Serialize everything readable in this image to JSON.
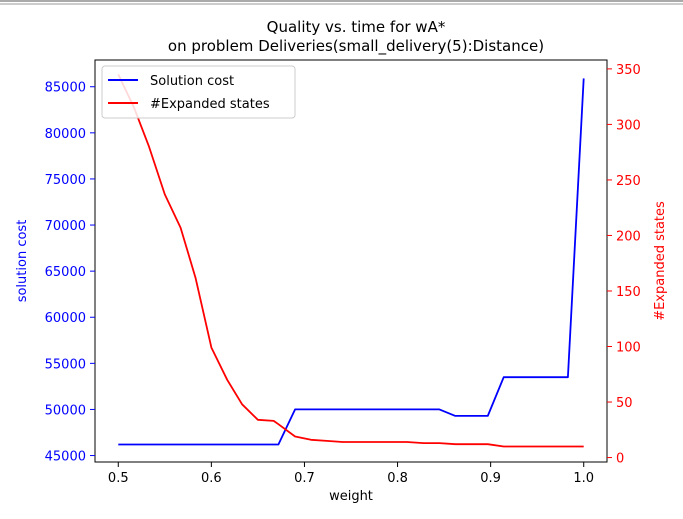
{
  "colors": {
    "cost": "#0000ff",
    "expanded": "#ff0000",
    "axis": "#000000",
    "background": "#ffffff"
  },
  "chart_data": {
    "type": "line",
    "title_line1": "Quality vs. time for wA*",
    "title_line2": "on problem Deliveries(small_delivery(5):Distance)",
    "xlabel": "weight",
    "ylabel_left": "solution cost",
    "ylabel_right": "#Expanded states",
    "xlim": [
      0.475,
      1.025
    ],
    "ylim_left": [
      44300,
      87900
    ],
    "ylim_right": [
      -4,
      358
    ],
    "xticks": [
      0.5,
      0.6,
      0.7,
      0.8,
      0.9,
      1.0
    ],
    "xtick_labels": [
      "0.5",
      "0.6",
      "0.7",
      "0.8",
      "0.9",
      "1.0"
    ],
    "yticks_left": [
      45000,
      50000,
      55000,
      60000,
      65000,
      70000,
      75000,
      80000,
      85000
    ],
    "ytick_labels_left": [
      "45000",
      "50000",
      "55000",
      "60000",
      "65000",
      "70000",
      "75000",
      "80000",
      "85000"
    ],
    "yticks_right": [
      0,
      50,
      100,
      150,
      200,
      250,
      300,
      350
    ],
    "ytick_labels_right": [
      "0",
      "50",
      "100",
      "150",
      "200",
      "250",
      "300",
      "350"
    ],
    "grid": false,
    "legend_position": "top-left",
    "series": [
      {
        "name": "Solution cost",
        "axis": "left",
        "color": "#0000ff",
        "x": [
          0.5,
          0.517,
          0.533,
          0.55,
          0.567,
          0.583,
          0.6,
          0.617,
          0.633,
          0.65,
          0.667,
          0.672,
          0.69,
          0.707,
          0.724,
          0.741,
          0.759,
          0.776,
          0.793,
          0.81,
          0.828,
          0.845,
          0.862,
          0.879,
          0.897,
          0.914,
          0.931,
          0.948,
          0.966,
          0.983,
          1.0
        ],
        "values": [
          46200,
          46200,
          46200,
          46200,
          46200,
          46200,
          46200,
          46200,
          46200,
          46200,
          46200,
          46200,
          50000,
          50000,
          50000,
          50000,
          50000,
          50000,
          50000,
          50000,
          50000,
          50000,
          49300,
          49300,
          49300,
          53500,
          53500,
          53500,
          53500,
          53500,
          85900
        ]
      },
      {
        "name": "#Expanded states",
        "axis": "right",
        "color": "#ff0000",
        "x": [
          0.5,
          0.517,
          0.533,
          0.55,
          0.567,
          0.583,
          0.6,
          0.617,
          0.633,
          0.65,
          0.667,
          0.672,
          0.69,
          0.707,
          0.724,
          0.741,
          0.759,
          0.776,
          0.793,
          0.81,
          0.828,
          0.845,
          0.862,
          0.879,
          0.897,
          0.914,
          0.931,
          0.948,
          0.966,
          0.983,
          1.0
        ],
        "values": [
          345,
          315,
          280,
          237,
          207,
          162,
          99,
          70,
          48,
          34,
          33,
          30,
          19,
          16,
          15,
          14,
          14,
          14,
          14,
          14,
          13,
          13,
          12,
          12,
          12,
          10,
          10,
          10,
          10,
          10,
          10
        ]
      }
    ]
  }
}
